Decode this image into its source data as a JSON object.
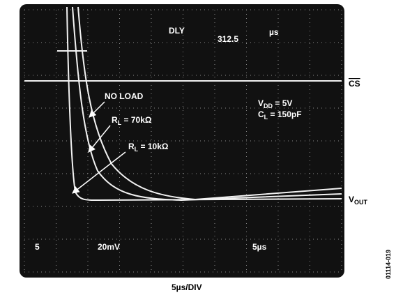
{
  "screen": {
    "delay_label": "DLY",
    "delay_value": "312.5",
    "delay_unit": "µs",
    "readouts": [
      "5",
      "20mV",
      "5µs"
    ]
  },
  "annotations": {
    "no_load": "NO LOAD",
    "rl70": {
      "symbol": "R",
      "sub": "L",
      "text": " = 70kΩ"
    },
    "rl10": {
      "symbol": "R",
      "sub": "L",
      "text": " = 10kΩ"
    },
    "vdd": {
      "symbol": "V",
      "sub": "DD",
      "text": " = 5V"
    },
    "cl": {
      "symbol": "C",
      "sub": "L",
      "text": " = 150pF"
    }
  },
  "signals": {
    "cs": "CS",
    "vout": {
      "symbol": "V",
      "sub": "OUT"
    }
  },
  "time_scale": "5µs/DIV",
  "figure_id": "01114-019"
}
